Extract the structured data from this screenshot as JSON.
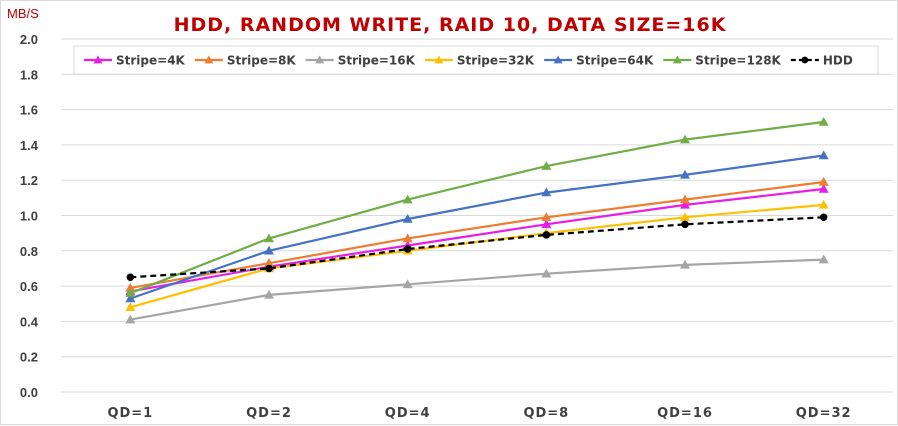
{
  "chart_data": {
    "type": "line",
    "title": "HDD, RANDOM WRITE, RAID 10, DATA SIZE=16K",
    "ylabel": "MB/S",
    "xlabel": "",
    "categories": [
      "QD=1",
      "QD=2",
      "QD=4",
      "QD=8",
      "QD=16",
      "QD=32"
    ],
    "ylim": [
      0,
      2.0
    ],
    "yticks": [
      "0.0",
      "0.2",
      "0.4",
      "0.6",
      "0.8",
      "1.0",
      "1.2",
      "1.4",
      "1.6",
      "1.8",
      "2.0"
    ],
    "grid": true,
    "legend_position": "top",
    "series": [
      {
        "name": "Stripe=4K",
        "color": "#e81ee6",
        "marker": "triangle",
        "dashed": false,
        "values": [
          0.57,
          0.71,
          0.83,
          0.95,
          1.06,
          1.15
        ]
      },
      {
        "name": "Stripe=8K",
        "color": "#ed7d31",
        "marker": "triangle",
        "dashed": false,
        "values": [
          0.59,
          0.73,
          0.87,
          0.99,
          1.09,
          1.19
        ]
      },
      {
        "name": "Stripe=16K",
        "color": "#a5a5a5",
        "marker": "triangle",
        "dashed": false,
        "values": [
          0.41,
          0.55,
          0.61,
          0.67,
          0.72,
          0.75
        ]
      },
      {
        "name": "Stripe=32K",
        "color": "#ffc000",
        "marker": "triangle",
        "dashed": false,
        "values": [
          0.48,
          0.7,
          0.8,
          0.9,
          0.99,
          1.06
        ]
      },
      {
        "name": "Stripe=64K",
        "color": "#4472c4",
        "marker": "triangle",
        "dashed": false,
        "values": [
          0.53,
          0.8,
          0.98,
          1.13,
          1.23,
          1.34
        ]
      },
      {
        "name": "Stripe=128K",
        "color": "#70ad47",
        "marker": "triangle",
        "dashed": false,
        "values": [
          0.56,
          0.87,
          1.09,
          1.28,
          1.43,
          1.53
        ]
      },
      {
        "name": "HDD",
        "color": "#000000",
        "marker": "circle",
        "dashed": true,
        "values": [
          0.65,
          0.7,
          0.81,
          0.89,
          0.95,
          0.99
        ]
      }
    ]
  }
}
